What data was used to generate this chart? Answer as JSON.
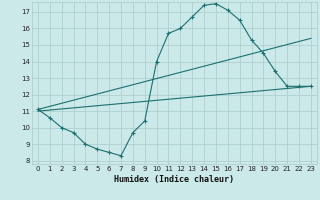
{
  "xlabel": "Humidex (Indice chaleur)",
  "background_color": "#cce9e9",
  "grid_color": "#b0d0d0",
  "line_color": "#1a7070",
  "xlim": [
    -0.5,
    23.5
  ],
  "ylim": [
    7.8,
    17.6
  ],
  "yticks": [
    8,
    9,
    10,
    11,
    12,
    13,
    14,
    15,
    16,
    17
  ],
  "xticks": [
    0,
    1,
    2,
    3,
    4,
    5,
    6,
    7,
    8,
    9,
    10,
    11,
    12,
    13,
    14,
    15,
    16,
    17,
    18,
    19,
    20,
    21,
    22,
    23
  ],
  "line1_x": [
    0,
    1,
    2,
    3,
    4,
    5,
    6,
    7,
    8,
    9,
    10,
    11,
    12,
    13,
    14,
    15,
    16,
    17,
    18,
    19,
    20,
    21,
    22,
    23
  ],
  "line1_y": [
    11.1,
    10.6,
    10.0,
    9.7,
    9.0,
    8.7,
    8.5,
    8.3,
    9.7,
    10.4,
    14.0,
    15.7,
    16.0,
    16.7,
    17.4,
    17.5,
    17.1,
    16.5,
    15.3,
    14.5,
    13.4,
    12.5,
    12.5,
    12.5
  ],
  "line2_x": [
    0,
    23
  ],
  "line2_y": [
    11.0,
    12.5
  ],
  "line3_x": [
    0,
    23
  ],
  "line3_y": [
    11.1,
    15.4
  ]
}
